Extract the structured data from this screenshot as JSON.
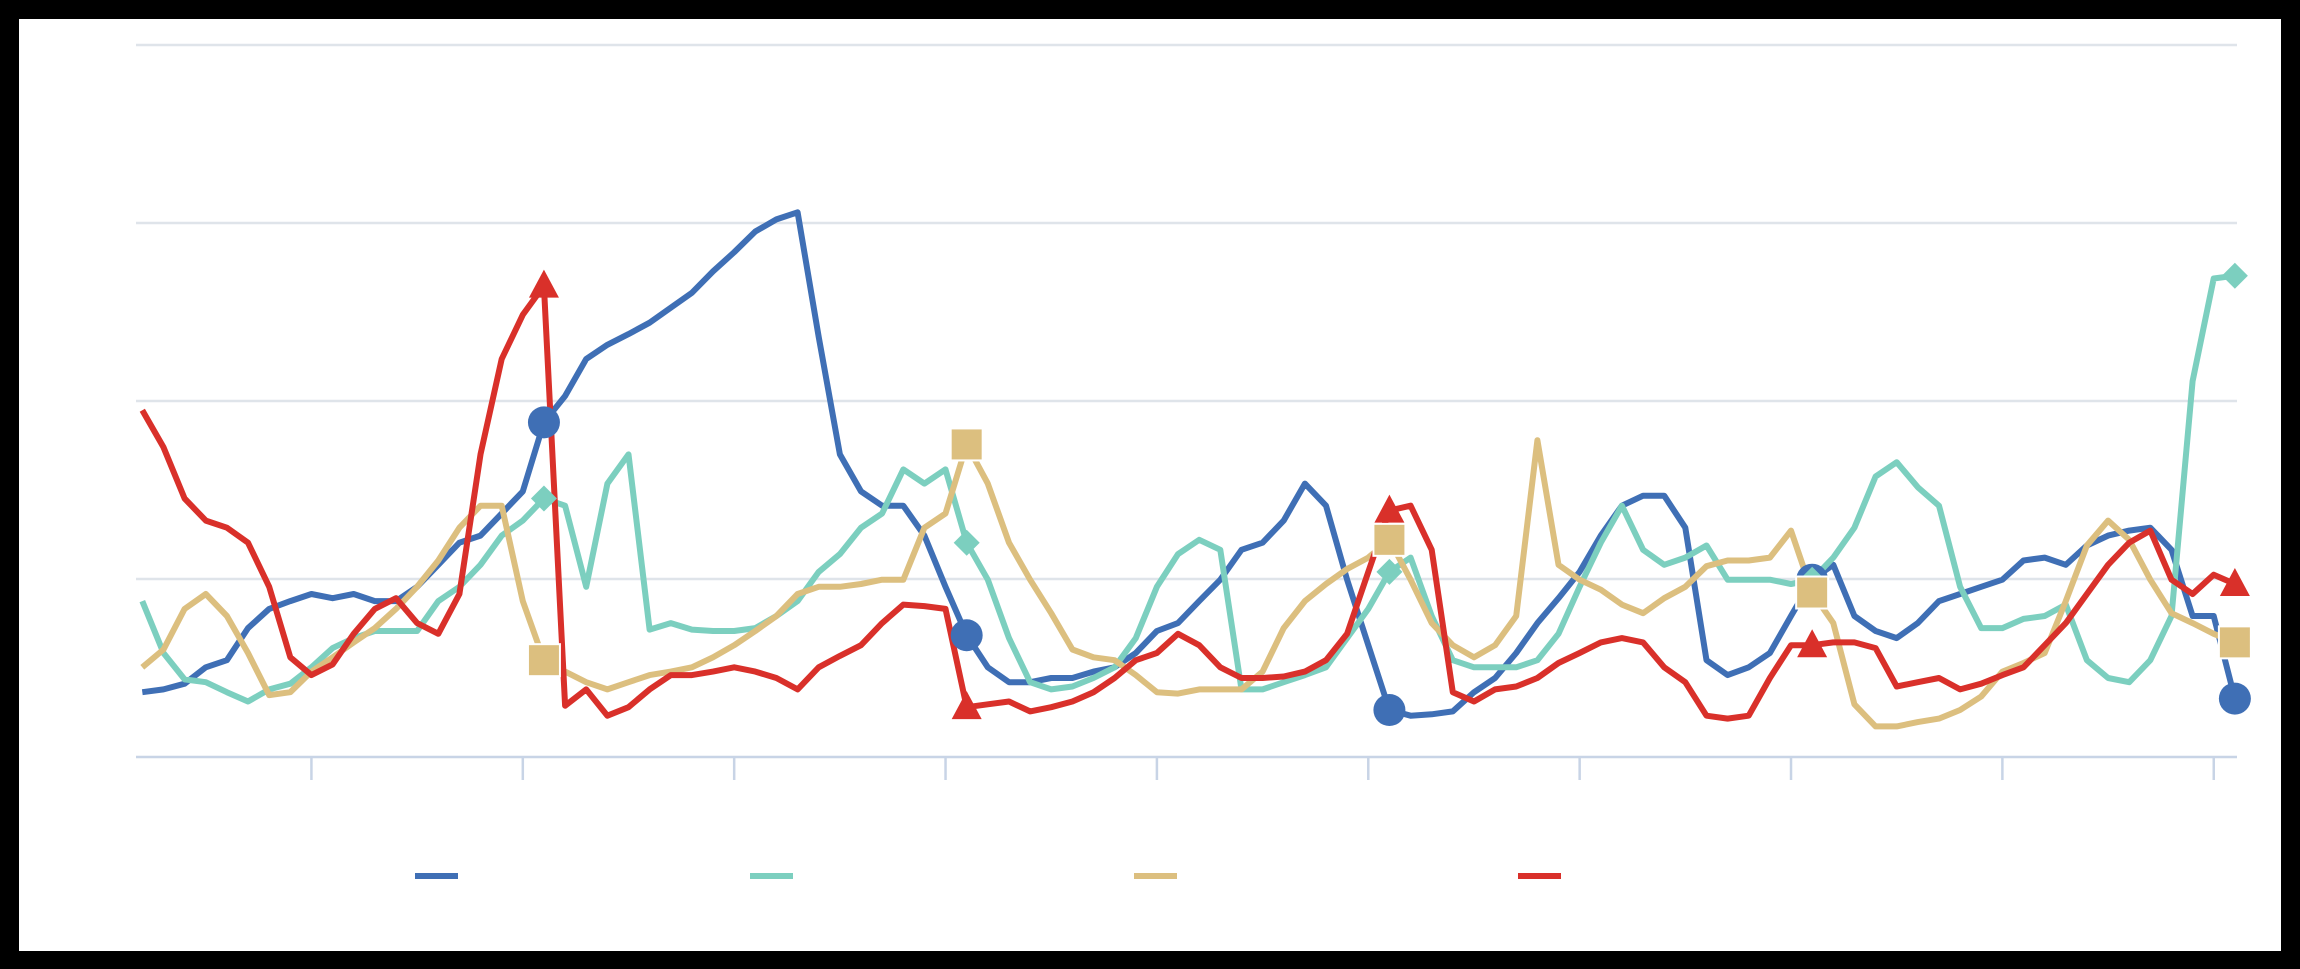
{
  "chart_data": {
    "type": "line",
    "x": [
      -8,
      -7,
      -6,
      -5,
      -4,
      -3,
      -2,
      -1,
      0,
      1,
      2,
      3,
      4,
      5,
      6,
      7,
      8,
      9,
      10,
      11,
      12,
      13,
      14,
      15,
      16,
      17,
      18,
      19,
      20,
      21,
      22,
      23,
      24,
      25,
      26,
      27,
      28,
      29,
      30,
      31,
      32,
      33,
      34,
      35,
      36,
      37,
      38,
      39,
      40,
      41,
      42,
      43,
      44,
      45,
      46,
      47,
      48,
      49,
      50,
      51,
      52,
      53,
      54,
      55,
      56,
      57,
      58,
      59,
      60,
      61,
      62,
      63,
      64,
      65,
      66,
      67,
      68,
      69,
      70,
      71,
      72,
      73,
      74,
      75,
      76,
      77,
      78,
      79,
      80,
      81,
      82,
      83,
      84,
      85,
      86,
      87,
      88,
      89,
      90,
      91
    ],
    "xlim": [
      -8.3,
      91.1
    ],
    "xticks": [
      0,
      10,
      20,
      30,
      40,
      50,
      60,
      70,
      80,
      90
    ],
    "ylim": [
      0,
      100
    ],
    "yticks": [
      0,
      25,
      50,
      75,
      100
    ],
    "grid": true,
    "legend": "bottom",
    "series": [
      {
        "color": "#3f6fb5",
        "marker": "circle",
        "values": [
          9.1,
          9.5,
          10.3,
          12.6,
          13.6,
          18.1,
          20.8,
          21.9,
          22.9,
          22.3,
          22.9,
          21.9,
          21.9,
          23.9,
          27,
          30.1,
          31.1,
          34.2,
          37.3,
          47,
          50.7,
          55.9,
          57.9,
          59.4,
          61,
          63.1,
          65.2,
          68.2,
          70.9,
          73.8,
          75.5,
          76.5,
          59,
          42.5,
          37.3,
          35.3,
          35.3,
          31.1,
          23.9,
          17.1,
          12.6,
          10.5,
          10.5,
          11.1,
          11.1,
          12,
          12.6,
          14.6,
          17.7,
          18.8,
          21.9,
          24.9,
          29.1,
          30.1,
          33.2,
          38.4,
          35.3,
          24.9,
          15.7,
          6.6,
          5.8,
          6,
          6.4,
          9.1,
          11.1,
          14.6,
          18.8,
          22.3,
          26,
          31.1,
          35.3,
          36.7,
          36.7,
          32.2,
          13.6,
          11.5,
          12.6,
          14.6,
          19.8,
          24.9,
          27,
          19.8,
          17.7,
          16.7,
          18.8,
          21.9,
          22.9,
          23.9,
          24.9,
          27.6,
          28,
          27,
          29.7,
          31.1,
          31.8,
          32.2,
          29.1,
          19.8,
          19.8,
          8.2
        ]
      },
      {
        "color": "#7ccfbf",
        "marker": "diamond",
        "values": [
          21.9,
          14.6,
          10.9,
          10.5,
          9.1,
          7.8,
          9.5,
          10.3,
          12.6,
          15.3,
          16.7,
          17.7,
          17.7,
          17.7,
          21.9,
          23.9,
          27,
          31.1,
          33.2,
          36.3,
          35.3,
          23.9,
          38.4,
          42.5,
          17.9,
          18.8,
          17.9,
          17.7,
          17.7,
          18.1,
          19.8,
          21.9,
          26,
          28.5,
          32.2,
          34.2,
          40.4,
          38.4,
          40.4,
          30.1,
          24.9,
          16.7,
          10.5,
          9.5,
          9.9,
          11.1,
          12.6,
          16.7,
          23.9,
          28.5,
          30.5,
          29.1,
          9.5,
          9.5,
          10.5,
          11.5,
          12.6,
          16.7,
          20.8,
          26,
          28,
          19.8,
          13.6,
          12.6,
          12.6,
          12.6,
          13.6,
          17.3,
          23.9,
          30.1,
          35.3,
          29.1,
          27,
          28,
          29.7,
          24.9,
          24.9,
          24.9,
          24.3,
          24.9,
          28,
          32.2,
          39.4,
          41.4,
          37.9,
          35.3,
          23.9,
          18.1,
          18.1,
          19.4,
          19.8,
          21.4,
          13.6,
          11.1,
          10.5,
          13.6,
          19.8,
          52.8,
          67.2,
          67.6
        ]
      },
      {
        "color": "#dcbf7f",
        "marker": "square",
        "values": [
          12.6,
          15.1,
          20.8,
          22.9,
          19.8,
          14.6,
          8.7,
          9.1,
          12,
          14,
          16.1,
          18.1,
          20.8,
          23.9,
          27.6,
          32.2,
          35.3,
          35.3,
          21.9,
          13.6,
          12,
          10.5,
          9.5,
          10.5,
          11.5,
          12,
          12.6,
          14,
          15.7,
          17.7,
          19.8,
          22.9,
          23.9,
          23.9,
          24.3,
          24.9,
          24.9,
          32.2,
          34.2,
          43.9,
          38.4,
          30.1,
          24.9,
          20.2,
          15.1,
          14,
          13.6,
          11.5,
          9.1,
          8.9,
          9.5,
          9.5,
          9.5,
          12,
          18.1,
          21.9,
          24.3,
          26.4,
          28,
          30.5,
          24.9,
          18.8,
          15.7,
          14,
          15.7,
          19.8,
          44.5,
          27,
          24.9,
          23.5,
          21.4,
          20.2,
          22.3,
          23.9,
          26.8,
          27.6,
          27.6,
          28,
          31.8,
          23.1,
          18.8,
          7.4,
          4.3,
          4.3,
          4.9,
          5.4,
          6.6,
          8.5,
          12,
          13.2,
          14.6,
          21.9,
          29.7,
          33.2,
          30.5,
          24.9,
          20.2,
          18.8,
          17.3,
          16.1
        ]
      },
      {
        "color": "#d9302a",
        "marker": "triangle",
        "values": [
          48.7,
          43.5,
          36.3,
          33.2,
          32.2,
          30.1,
          23.9,
          14,
          11.5,
          13,
          17.3,
          20.8,
          22.3,
          18.8,
          17.3,
          22.9,
          42.5,
          55.9,
          62.1,
          66.2,
          7.2,
          9.5,
          5.8,
          7,
          9.5,
          11.5,
          11.5,
          12,
          12.6,
          12,
          11.1,
          9.5,
          12.6,
          14.2,
          15.7,
          18.8,
          21.4,
          21.2,
          20.8,
          7,
          7.4,
          7.8,
          6.4,
          7,
          7.8,
          9.1,
          11.1,
          13.6,
          14.6,
          17.3,
          15.7,
          12.6,
          11.1,
          11.1,
          11.3,
          12,
          13.6,
          17.3,
          26,
          34.6,
          35.3,
          29.1,
          9.1,
          7.8,
          9.5,
          9.9,
          11.1,
          13.2,
          14.6,
          16.1,
          16.7,
          16.1,
          12.6,
          10.5,
          5.8,
          5.4,
          5.8,
          11.1,
          15.7,
          15.7,
          16.1,
          16.1,
          15.3,
          9.9,
          10.5,
          11.1,
          9.5,
          10.3,
          11.5,
          12.6,
          15.7,
          18.8,
          22.9,
          27,
          30.1,
          31.8,
          24.9,
          22.9,
          25.6,
          24.3
        ]
      }
    ]
  }
}
